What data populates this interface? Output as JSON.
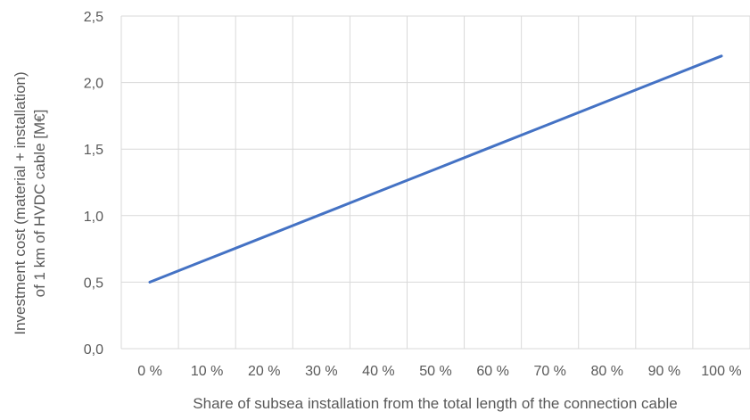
{
  "chart_data": {
    "type": "line",
    "title": "",
    "xlabel": "Share of subsea installation from the total length of the connection cable",
    "ylabel_lines": [
      "Investment cost (material + installation)",
      "of 1 km of  HVDC cable [M€]"
    ],
    "categories": [
      "0 %",
      "10 %",
      "20 %",
      "30 %",
      "40 %",
      "50 %",
      "60 %",
      "70 %",
      "80 %",
      "90 %",
      "100 %"
    ],
    "x": [
      0,
      10,
      20,
      30,
      40,
      50,
      60,
      70,
      80,
      90,
      100
    ],
    "y_ticks": [
      "0,0",
      "0,5",
      "1,0",
      "1,5",
      "2,0",
      "2,5"
    ],
    "y_tick_values": [
      0,
      0.5,
      1.0,
      1.5,
      2.0,
      2.5
    ],
    "ylim": [
      0,
      2.5
    ],
    "series": [
      {
        "values": [
          0.5,
          0.67,
          0.84,
          1.01,
          1.18,
          1.35,
          1.52,
          1.69,
          1.86,
          2.03,
          2.2
        ],
        "color": "#4472C4"
      }
    ],
    "grid": true,
    "legend": "none",
    "colors": {
      "gridline": "#D9D9D9",
      "text": "#595959"
    }
  }
}
